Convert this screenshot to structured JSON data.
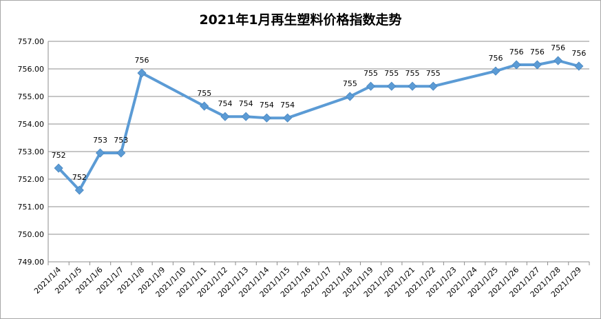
{
  "chart_data": {
    "type": "line",
    "title": "2021年1月再生塑料价格指数走势",
    "xlabel": "",
    "ylabel": "",
    "ylim": [
      749,
      757
    ],
    "yticks": [
      "749.00",
      "750.00",
      "751.00",
      "752.00",
      "753.00",
      "754.00",
      "755.00",
      "756.00",
      "757.00"
    ],
    "grid": true,
    "legend": "none",
    "line_color": "#5b9bd5",
    "categories": [
      "2021/1/4",
      "2021/1/5",
      "2021/1/6",
      "2021/1/7",
      "2021/1/8",
      "2021/1/9",
      "2021/1/10",
      "2021/1/11",
      "2021/1/12",
      "2021/1/13",
      "2021/1/14",
      "2021/1/15",
      "2021/1/16",
      "2021/1/17",
      "2021/1/18",
      "2021/1/19",
      "2021/1/20",
      "2021/1/21",
      "2021/1/22",
      "2021/1/23",
      "2021/1/24",
      "2021/1/25",
      "2021/1/26",
      "2021/1/27",
      "2021/1/28",
      "2021/1/29"
    ],
    "points": [
      {
        "x": "2021/1/4",
        "y": 752.4,
        "label": "752"
      },
      {
        "x": "2021/1/5",
        "y": 751.6,
        "label": "752"
      },
      {
        "x": "2021/1/6",
        "y": 752.95,
        "label": "753"
      },
      {
        "x": "2021/1/7",
        "y": 752.95,
        "label": "753"
      },
      {
        "x": "2021/1/8",
        "y": 755.85,
        "label": "756"
      },
      {
        "x": "2021/1/11",
        "y": 754.65,
        "label": "755"
      },
      {
        "x": "2021/1/12",
        "y": 754.27,
        "label": "754"
      },
      {
        "x": "2021/1/13",
        "y": 754.27,
        "label": "754"
      },
      {
        "x": "2021/1/14",
        "y": 754.22,
        "label": "754"
      },
      {
        "x": "2021/1/15",
        "y": 754.22,
        "label": "754"
      },
      {
        "x": "2021/1/18",
        "y": 755.0,
        "label": "755"
      },
      {
        "x": "2021/1/19",
        "y": 755.37,
        "label": "755"
      },
      {
        "x": "2021/1/20",
        "y": 755.37,
        "label": "755"
      },
      {
        "x": "2021/1/21",
        "y": 755.37,
        "label": "755"
      },
      {
        "x": "2021/1/22",
        "y": 755.37,
        "label": "755"
      },
      {
        "x": "2021/1/25",
        "y": 755.92,
        "label": "756"
      },
      {
        "x": "2021/1/26",
        "y": 756.15,
        "label": "756"
      },
      {
        "x": "2021/1/27",
        "y": 756.15,
        "label": "756"
      },
      {
        "x": "2021/1/28",
        "y": 756.3,
        "label": "756"
      },
      {
        "x": "2021/1/29",
        "y": 756.1,
        "label": "756"
      }
    ]
  }
}
